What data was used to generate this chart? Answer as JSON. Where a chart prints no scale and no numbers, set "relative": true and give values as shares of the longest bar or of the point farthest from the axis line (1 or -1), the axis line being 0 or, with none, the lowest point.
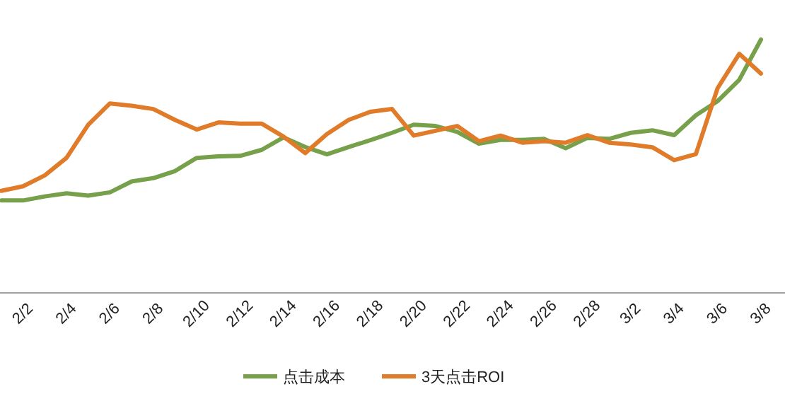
{
  "chart_data": {
    "type": "line",
    "relative": true,
    "legend": "bottom",
    "marker": "none",
    "line_style": "solid",
    "categories": [
      null,
      "2/2",
      null,
      "2/4",
      null,
      "2/6",
      null,
      "2/8",
      null,
      "2/10",
      null,
      "2/12",
      null,
      "2/14",
      null,
      "2/16",
      null,
      "2/18",
      null,
      "2/20",
      null,
      "2/22",
      null,
      "2/24",
      null,
      "2/26",
      null,
      "2/28",
      null,
      "3/2",
      null,
      "3/4",
      null,
      "3/6",
      null,
      "3/8"
    ],
    "series": [
      {
        "name": "点击成本",
        "color": "#77a04a",
        "values": [
          0.365,
          0.365,
          0.381,
          0.393,
          0.384,
          0.397,
          0.44,
          0.453,
          0.481,
          0.533,
          0.539,
          0.541,
          0.565,
          0.614,
          0.576,
          0.547,
          0.576,
          0.603,
          0.632,
          0.664,
          0.659,
          0.636,
          0.589,
          0.604,
          0.604,
          0.608,
          0.571,
          0.612,
          0.608,
          0.632,
          0.642,
          0.623,
          0.701,
          0.757,
          0.841,
          1
        ]
      },
      {
        "name": "3天点击ROI",
        "color": "#e07b2a",
        "values": [
          0.403,
          0.421,
          0.464,
          0.533,
          0.664,
          0.748,
          0.739,
          0.726,
          0.683,
          0.645,
          0.673,
          0.668,
          0.668,
          0.617,
          0.552,
          0.627,
          0.683,
          0.715,
          0.726,
          0.621,
          0.64,
          0.659,
          0.599,
          0.621,
          0.593,
          0.599,
          0.593,
          0.623,
          0.593,
          0.586,
          0.575,
          0.524,
          0.548,
          0.808,
          0.944,
          0.866
        ]
      }
    ]
  }
}
